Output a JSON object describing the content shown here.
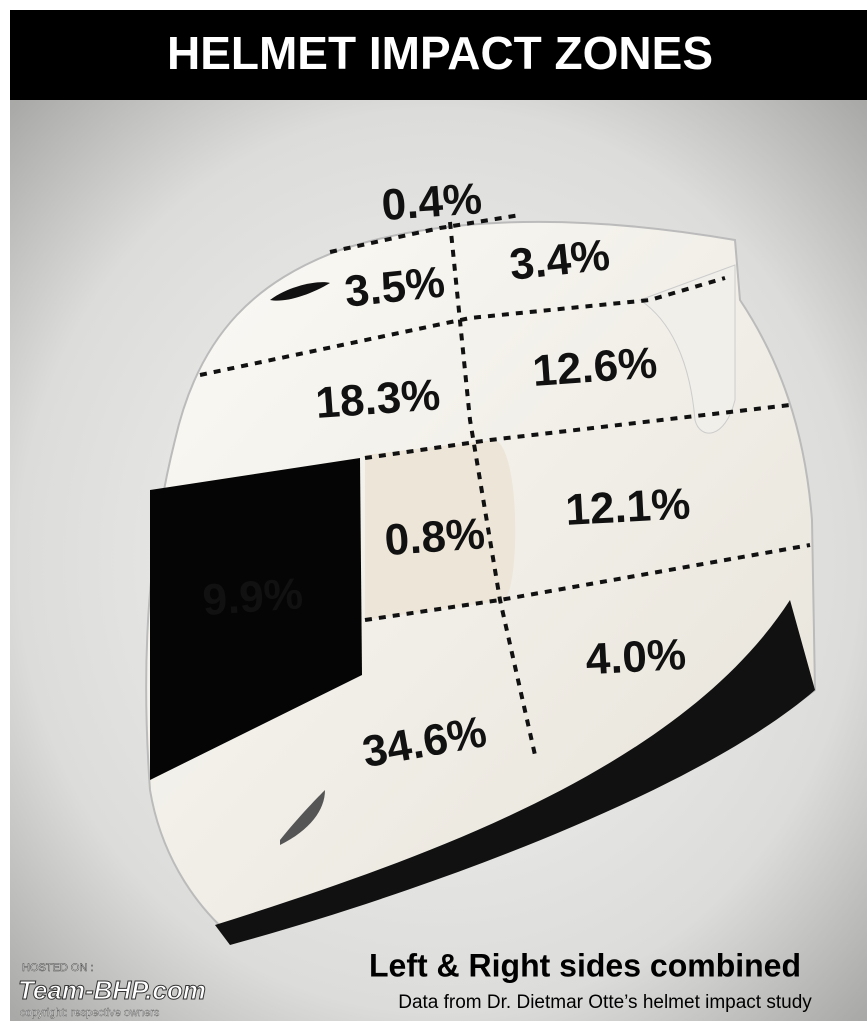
{
  "header": {
    "title": "HELMET IMPACT ZONES"
  },
  "zones": [
    {
      "label": "0.4%"
    },
    {
      "label": "3.5%"
    },
    {
      "label": "3.4%"
    },
    {
      "label": "18.3%"
    },
    {
      "label": "12.6%"
    },
    {
      "label": "0.8%"
    },
    {
      "label": "12.1%"
    },
    {
      "label": "9.9%"
    },
    {
      "label": "4.0%"
    },
    {
      "label": "34.6%"
    }
  ],
  "footer": {
    "caption": "Left & Right sides combined",
    "source": "Data from Dr. Dietmar Otte’s helmet impact study"
  },
  "watermark": {
    "hosted": "HOSTED ON :",
    "site": "Team-BHP.com",
    "copyright": "copyright: respective owners"
  }
}
